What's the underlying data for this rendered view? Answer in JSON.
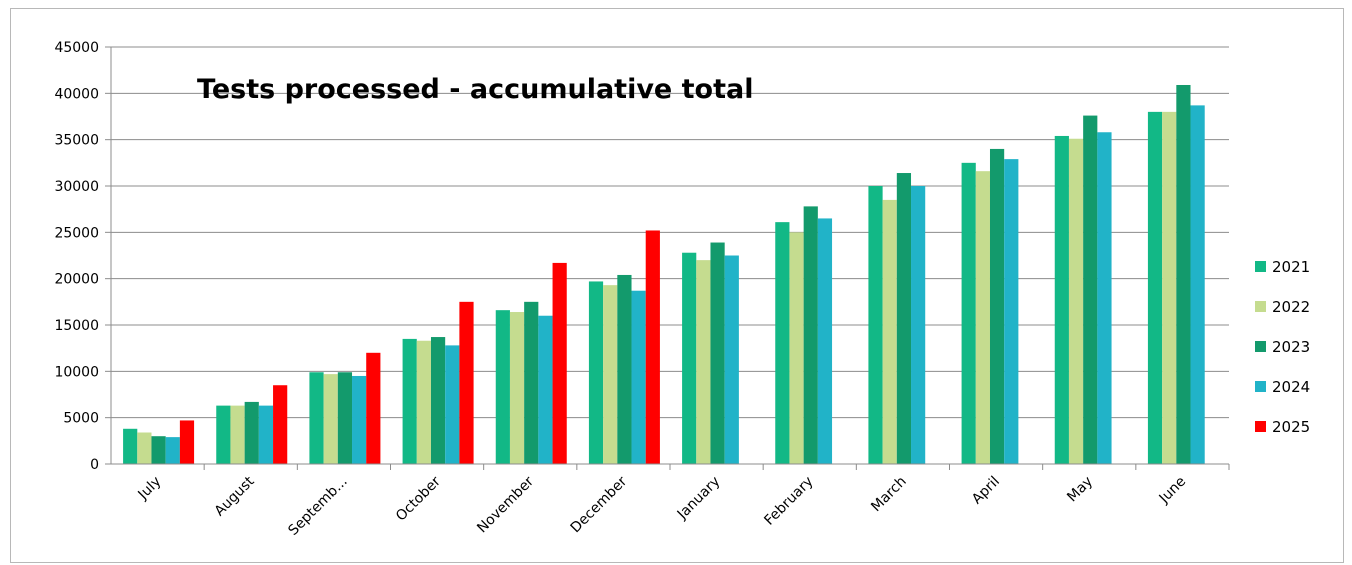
{
  "chart_data": {
    "type": "bar",
    "title": "Tests processed - accumulative total",
    "xlabel": "",
    "ylabel": "",
    "ylim": [
      0,
      45000
    ],
    "y_ticks": [
      0,
      5000,
      10000,
      15000,
      20000,
      25000,
      30000,
      35000,
      40000,
      45000
    ],
    "grid": true,
    "legend_position": "right",
    "categories": [
      "July",
      "August",
      "Septemb...",
      "October",
      "November",
      "December",
      "January",
      "February",
      "March",
      "April",
      "May",
      "June"
    ],
    "series": [
      {
        "name": "2021",
        "color": "#12b886",
        "values": [
          3800,
          6300,
          9900,
          13500,
          16600,
          19700,
          22800,
          26100,
          30000,
          32500,
          35400,
          38000
        ]
      },
      {
        "name": "2022",
        "color": "#c5dc8f",
        "values": [
          3400,
          6300,
          9700,
          13300,
          16400,
          19300,
          22000,
          25000,
          28500,
          31600,
          35100,
          38000
        ]
      },
      {
        "name": "2023",
        "color": "#139a6c",
        "values": [
          3000,
          6700,
          9900,
          13700,
          17500,
          20400,
          23900,
          27800,
          31400,
          34000,
          37600,
          40900
        ]
      },
      {
        "name": "2024",
        "color": "#21b3c8",
        "values": [
          2900,
          6300,
          9500,
          12800,
          16000,
          18700,
          22500,
          26500,
          30000,
          32900,
          35800,
          38700
        ]
      },
      {
        "name": "2025",
        "color": "#ff0000",
        "values": [
          4700,
          8500,
          12000,
          17500,
          21700,
          25200,
          null,
          null,
          null,
          null,
          null,
          null
        ]
      }
    ]
  }
}
